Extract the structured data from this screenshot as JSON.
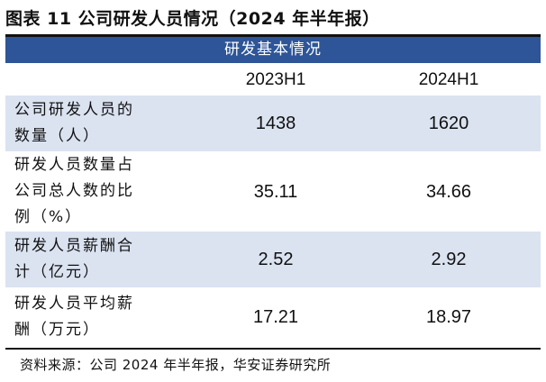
{
  "title": "图表 11 公司研发人员情况（2024 年半年报）",
  "band_title": "研发基本情况",
  "columns": [
    "2023H1",
    "2024H1"
  ],
  "rows": [
    {
      "label": [
        "公司研发人员的",
        "数量（人）"
      ],
      "v2023": "1438",
      "v2024": "1620"
    },
    {
      "label": [
        "研发人员数量占",
        "公司总人数的比",
        "例（%）"
      ],
      "v2023": "35.11",
      "v2024": "34.66"
    },
    {
      "label": [
        "研发人员薪酬合",
        "计（亿元）"
      ],
      "v2023": "2.52",
      "v2024": "2.92"
    },
    {
      "label": [
        "研发人员平均薪",
        "酬（万元）"
      ],
      "v2023": "17.21",
      "v2024": "18.97"
    }
  ],
  "source": "资料来源：公司 2024 年半年报，华安证券研究所",
  "colors": {
    "band": "#2e5597",
    "shade": "#dbe3f1",
    "text": "#111111"
  }
}
